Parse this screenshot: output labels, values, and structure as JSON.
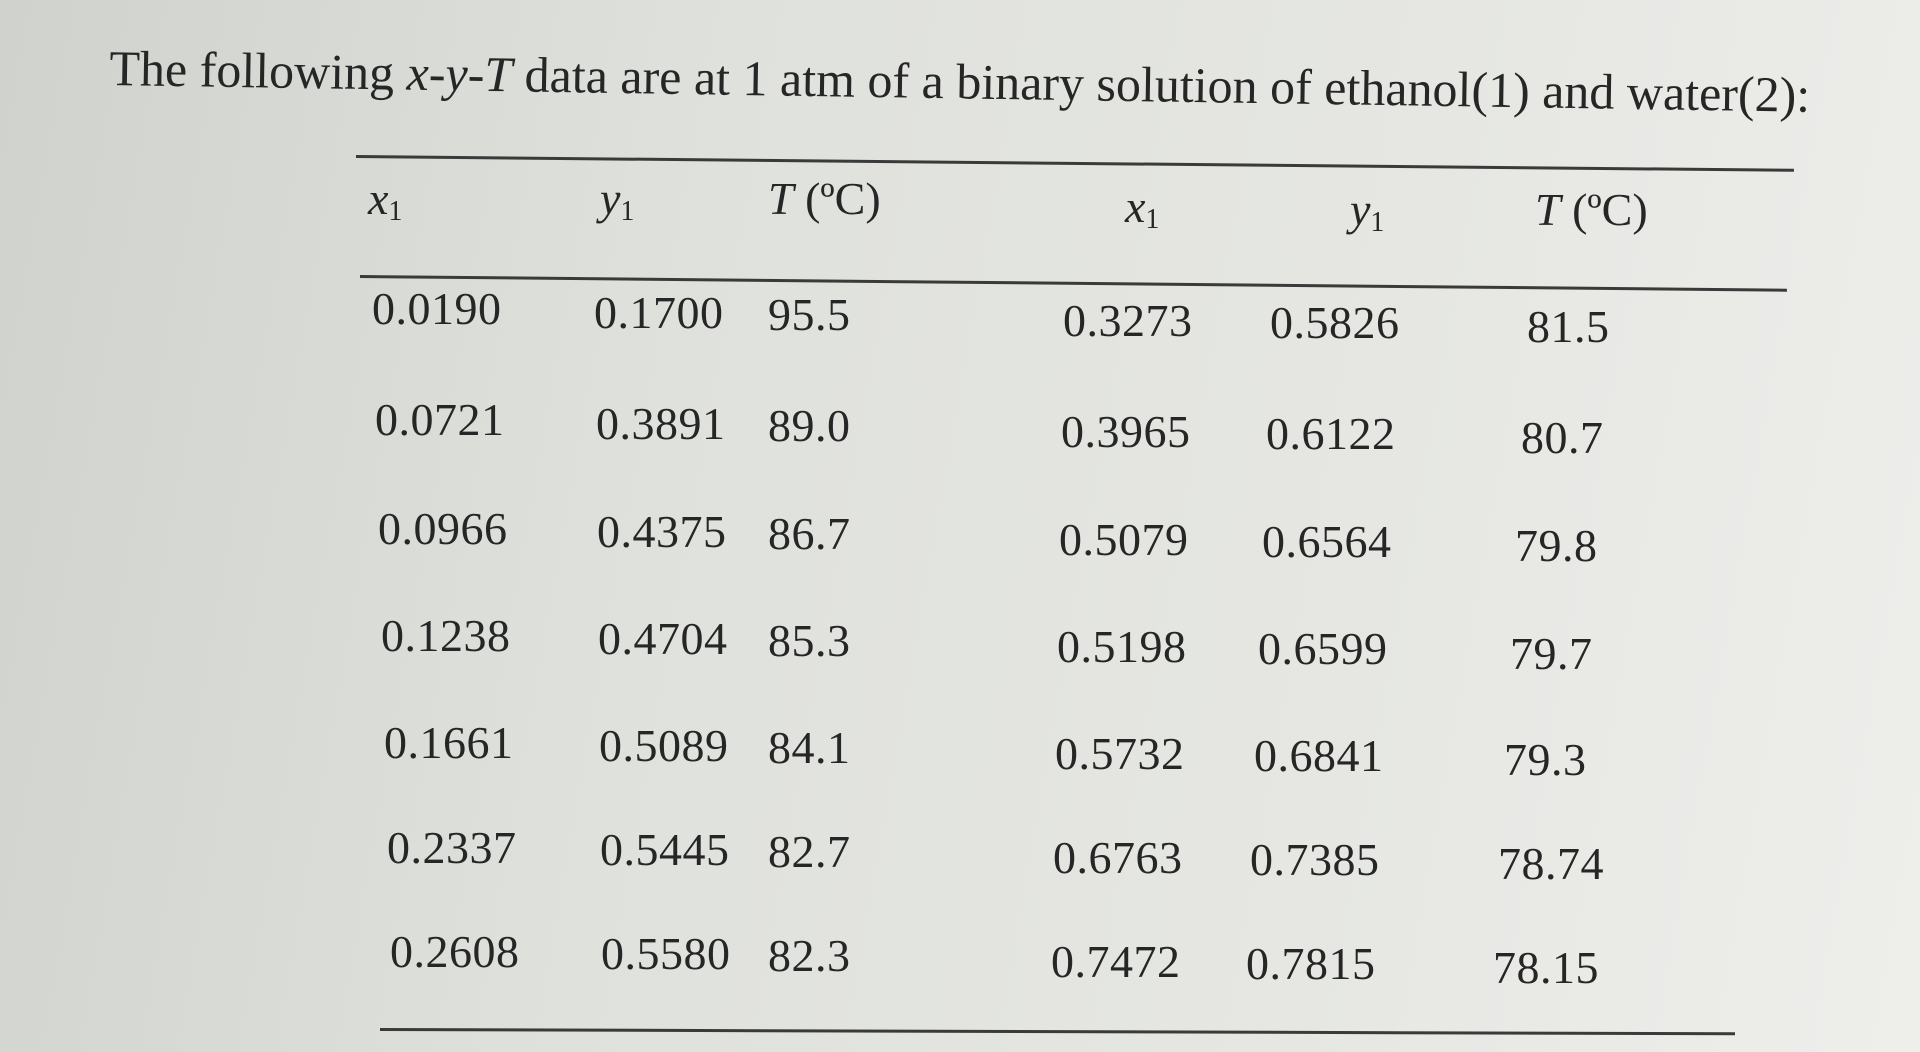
{
  "intro": {
    "prefix": "The following ",
    "var_x": "x",
    "dash1": "-",
    "var_y": "y",
    "dash2": "-",
    "var_T": "T",
    "suffix": " data are at 1 atm of a binary solution of ethanol(1) and water(2):"
  },
  "table": {
    "headers": [
      {
        "var": "x",
        "sub": "1"
      },
      {
        "var": "y",
        "sub": "1"
      },
      {
        "var": "T",
        "unit": " (ºC)"
      },
      {
        "var": "x",
        "sub": "1"
      },
      {
        "var": "y",
        "sub": "1"
      },
      {
        "var": "T",
        "unit": " (ºC)"
      }
    ],
    "rows": [
      [
        "0.0190",
        "0.1700",
        "95.5",
        "0.3273",
        "0.5826",
        "81.5"
      ],
      [
        "0.0721",
        "0.3891",
        "89.0",
        "0.3965",
        "0.6122",
        "80.7"
      ],
      [
        "0.0966",
        "0.4375",
        "86.7",
        "0.5079",
        "0.6564",
        "79.8"
      ],
      [
        "0.1238",
        "0.4704",
        "85.3",
        "0.5198",
        "0.6599",
        "79.7"
      ],
      [
        "0.1661",
        "0.5089",
        "84.1",
        "0.5732",
        "0.6841",
        "79.3"
      ],
      [
        "0.2337",
        "0.5445",
        "82.7",
        "0.6763",
        "0.7385",
        "78.74"
      ],
      [
        "0.2608",
        "0.5580",
        "82.3",
        "0.7472",
        "0.7815",
        "78.15"
      ]
    ]
  }
}
